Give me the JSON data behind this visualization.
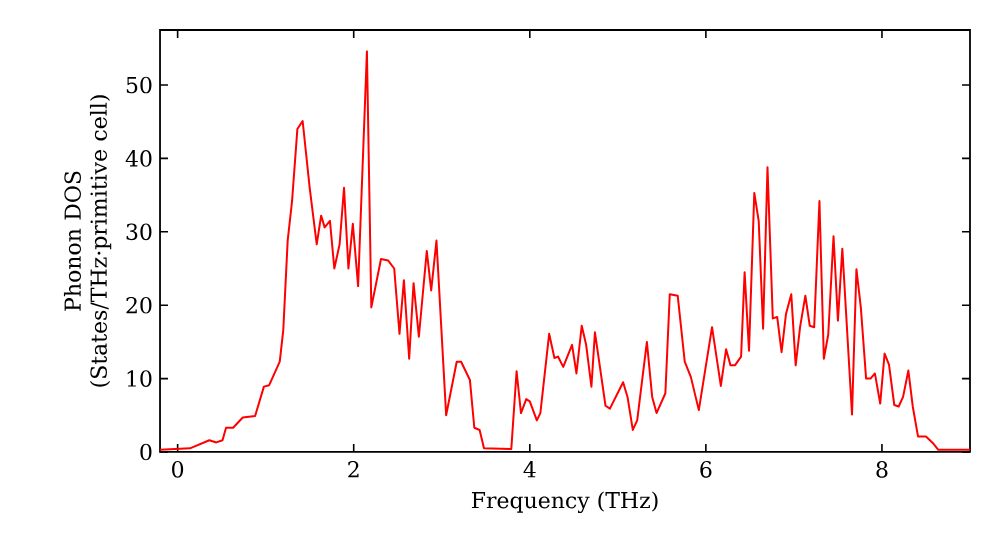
{
  "chart_data": {
    "type": "line",
    "xlabel": "Frequency (THz)",
    "ylabel": "Phonon DOS (States/THz·primitive cell)",
    "xlim": [
      -0.2,
      9.0
    ],
    "ylim": [
      0,
      57.5
    ],
    "xticks": [
      0,
      2,
      4,
      6,
      8
    ],
    "yticks": [
      0,
      10,
      20,
      30,
      40,
      50
    ],
    "grid": false,
    "marker": "none",
    "line_style": "solid",
    "series": [
      {
        "color": "#ff0000",
        "x": [
          -0.2,
          0.14,
          0.36,
          0.44,
          0.51,
          0.55,
          0.63,
          0.74,
          0.88,
          0.98,
          1.04,
          1.16,
          1.2,
          1.25,
          1.3,
          1.36,
          1.42,
          1.5,
          1.58,
          1.63,
          1.67,
          1.73,
          1.78,
          1.84,
          1.89,
          1.94,
          1.99,
          2.05,
          2.15,
          2.2,
          2.31,
          2.39,
          2.46,
          2.52,
          2.57,
          2.63,
          2.68,
          2.74,
          2.83,
          2.88,
          2.94,
          3.05,
          3.17,
          3.22,
          3.32,
          3.37,
          3.43,
          3.48,
          3.79,
          3.85,
          3.9,
          3.96,
          4.0,
          4.08,
          4.12,
          4.22,
          4.28,
          4.32,
          4.38,
          4.48,
          4.53,
          4.59,
          4.64,
          4.7,
          4.74,
          4.86,
          4.91,
          5.06,
          5.11,
          5.17,
          5.22,
          5.33,
          5.39,
          5.44,
          5.54,
          5.59,
          5.68,
          5.76,
          5.83,
          5.92,
          6.07,
          6.17,
          6.23,
          6.28,
          6.33,
          6.4,
          6.44,
          6.49,
          6.55,
          6.6,
          6.65,
          6.7,
          6.76,
          6.81,
          6.86,
          6.91,
          6.97,
          7.02,
          7.07,
          7.13,
          7.18,
          7.23,
          7.29,
          7.34,
          7.39,
          7.45,
          7.5,
          7.55,
          7.66,
          7.71,
          7.76,
          7.82,
          7.87,
          7.92,
          7.98,
          8.03,
          8.08,
          8.14,
          8.19,
          8.24,
          8.3,
          8.35,
          8.41,
          8.5,
          8.58,
          8.64,
          9.0
        ],
        "values": [
          0.3,
          0.5,
          1.6,
          1.3,
          1.6,
          3.3,
          3.3,
          4.7,
          4.9,
          8.9,
          9.1,
          12.3,
          16.6,
          28.8,
          34.2,
          44,
          45.1,
          36,
          28.3,
          32.2,
          30.6,
          31.5,
          25,
          28.3,
          36,
          25,
          31.1,
          22.6,
          54.6,
          19.7,
          26.3,
          26.1,
          25,
          16.1,
          23.4,
          12.7,
          23,
          15.7,
          27.4,
          22,
          28.8,
          5,
          12.3,
          12.3,
          9.8,
          3.3,
          3,
          0.5,
          0.4,
          11,
          5.3,
          7.2,
          6.9,
          4.3,
          5.3,
          16.1,
          12.8,
          13,
          11.6,
          14.6,
          10.7,
          17.2,
          14.6,
          8.9,
          16.3,
          6.3,
          5.9,
          9.5,
          7.5,
          3,
          4.3,
          15,
          7.5,
          5.3,
          8,
          21.5,
          21.3,
          12.3,
          10.2,
          5.7,
          17,
          9,
          14,
          11.8,
          11.8,
          13,
          24.5,
          13.8,
          35.3,
          31.5,
          16.8,
          38.8,
          18.2,
          18.4,
          13.6,
          18.8,
          21.5,
          11.8,
          17,
          21.3,
          17.2,
          17,
          34.2,
          12.7,
          16,
          29.4,
          17.9,
          27.7,
          5.1,
          24.9,
          19.7,
          10,
          10,
          10.7,
          6.6,
          13.4,
          11.9,
          6.4,
          6.2,
          7.5,
          11.1,
          6.2,
          2.1,
          2.1,
          1.2,
          0.3,
          0.3
        ]
      }
    ]
  }
}
